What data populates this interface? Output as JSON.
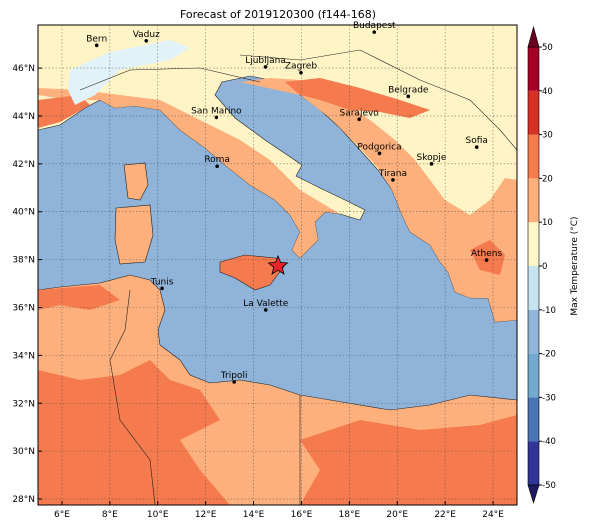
{
  "title": "Forecast of 2019120300 (f144-168)",
  "map": {
    "lon_range": [
      5,
      25
    ],
    "lat_range": [
      27.75,
      47.8
    ],
    "lon_ticks": [
      {
        "value": 6,
        "label": "6°E"
      },
      {
        "value": 8,
        "label": "8°E"
      },
      {
        "value": 10,
        "label": "10°E"
      },
      {
        "value": 12,
        "label": "12°E"
      },
      {
        "value": 14,
        "label": "14°E"
      },
      {
        "value": 16,
        "label": "16°E"
      },
      {
        "value": 18,
        "label": "18°E"
      },
      {
        "value": 20,
        "label": "20°E"
      },
      {
        "value": 22,
        "label": "22°E"
      },
      {
        "value": 24,
        "label": "24°E"
      }
    ],
    "lat_ticks": [
      {
        "value": 28,
        "label": "28°N"
      },
      {
        "value": 30,
        "label": "30°N"
      },
      {
        "value": 32,
        "label": "32°N"
      },
      {
        "value": 34,
        "label": "34°N"
      },
      {
        "value": 36,
        "label": "36°N"
      },
      {
        "value": 38,
        "label": "38°N"
      },
      {
        "value": 40,
        "label": "40°N"
      },
      {
        "value": 42,
        "label": "42°N"
      },
      {
        "value": 44,
        "label": "44°N"
      },
      {
        "value": 46,
        "label": "46°N"
      }
    ],
    "cities": [
      {
        "name": "Bern",
        "lon": 7.45,
        "lat": 46.95
      },
      {
        "name": "Vaduz",
        "lon": 9.52,
        "lat": 47.14
      },
      {
        "name": "Budapest",
        "lon": 19.04,
        "lat": 47.5
      },
      {
        "name": "Ljubljana",
        "lon": 14.5,
        "lat": 46.05
      },
      {
        "name": "Zagreb",
        "lon": 15.98,
        "lat": 45.81
      },
      {
        "name": "Belgrade",
        "lon": 20.46,
        "lat": 44.82
      },
      {
        "name": "Sarajevo",
        "lon": 18.41,
        "lat": 43.86
      },
      {
        "name": "San Marino",
        "lon": 12.45,
        "lat": 43.94
      },
      {
        "name": "Podgorica",
        "lon": 19.26,
        "lat": 42.44
      },
      {
        "name": "Sofia",
        "lon": 23.32,
        "lat": 42.7
      },
      {
        "name": "Roma",
        "lon": 12.48,
        "lat": 41.9
      },
      {
        "name": "Skopje",
        "lon": 21.43,
        "lat": 42.0
      },
      {
        "name": "Tirana",
        "lon": 19.82,
        "lat": 41.33
      },
      {
        "name": "Athens",
        "lon": 23.73,
        "lat": 37.98
      },
      {
        "name": "Tunis",
        "lon": 10.18,
        "lat": 36.8
      },
      {
        "name": "La Valette",
        "lon": 14.51,
        "lat": 35.9
      },
      {
        "name": "Tripoli",
        "lon": 13.19,
        "lat": 32.89
      }
    ]
  },
  "colorbar": {
    "label": "Max Temperature (°C)",
    "ticks": [
      -50,
      -40,
      -30,
      -20,
      -10,
      0,
      10,
      20,
      30,
      40,
      50
    ],
    "colors": [
      "#313695",
      "#4a74b4",
      "#74a9cf",
      "#91b6d9",
      "#c6e4ef",
      "#fef6c8",
      "#fdb07c",
      "#f57a4e",
      "#d73027",
      "#a50026"
    ],
    "extend_colors": [
      "#1e1a66",
      "#6b0020"
    ]
  }
}
